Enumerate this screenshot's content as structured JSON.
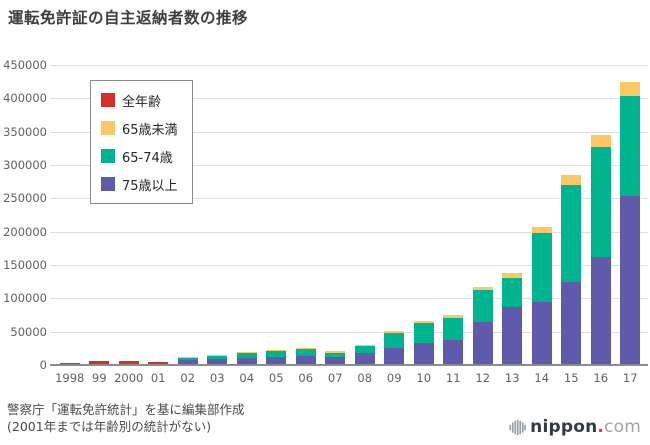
{
  "chart_data": {
    "type": "bar",
    "stacked": true,
    "title": "運転免許証の自主返納者数の推移",
    "categories": [
      "1998",
      "99",
      "2000",
      "01",
      "02",
      "03",
      "04",
      "05",
      "06",
      "07",
      "08",
      "09",
      "10",
      "11",
      "12",
      "13",
      "14",
      "15",
      "16",
      "17"
    ],
    "series": [
      {
        "name": "全年齢",
        "color": "#d2302c",
        "values": [
          2600,
          6000,
          5600,
          4200,
          0,
          0,
          0,
          0,
          0,
          0,
          0,
          0,
          0,
          0,
          0,
          0,
          0,
          0,
          0,
          0
        ]
      },
      {
        "name": "75歳以上",
        "color": "#5f5aaa",
        "values": [
          0,
          0,
          0,
          0,
          7000,
          8500,
          10500,
          12500,
          13500,
          11500,
          18500,
          26000,
          33000,
          37500,
          64500,
          87000,
          95000,
          123900,
          162300,
          253900
        ]
      },
      {
        "name": "65-74歳",
        "color": "#00b490",
        "values": [
          0,
          0,
          0,
          0,
          3500,
          5000,
          7500,
          8500,
          10000,
          7000,
          9500,
          22500,
          30000,
          33500,
          47500,
          43000,
          103500,
          146000,
          165000,
          150000
        ]
      },
      {
        "name": "65歳未満",
        "color": "#fcc765",
        "values": [
          0,
          0,
          0,
          0,
          1000,
          1200,
          1500,
          2000,
          2200,
          2100,
          1700,
          2600,
          2600,
          3500,
          5600,
          7900,
          7800,
          15600,
          18000,
          19900
        ]
      }
    ],
    "legend": [
      {
        "label": "全年齢",
        "color": "#d2302c"
      },
      {
        "label": "65歳未満",
        "color": "#fcc765"
      },
      {
        "label": "65-74歳",
        "color": "#00b490"
      },
      {
        "label": "75歳以上",
        "color": "#5f5aaa"
      }
    ],
    "legend_position": "top-left-inset",
    "grid": true,
    "xlabel": "",
    "ylabel": "",
    "ylim": [
      0,
      450000
    ],
    "ytick_step": 50000,
    "ytick_labels": [
      "0",
      "50000",
      "100000",
      "150000",
      "200000",
      "250000",
      "300000",
      "350000",
      "400000",
      "450000"
    ]
  },
  "footer": {
    "source_line": "警察庁「運転免許統計」を基に編集部作成",
    "note_line": "(2001年までは年齢別の統計がない)"
  },
  "logo": {
    "brand": "nippon",
    "dot": ".",
    "tld": "com"
  }
}
